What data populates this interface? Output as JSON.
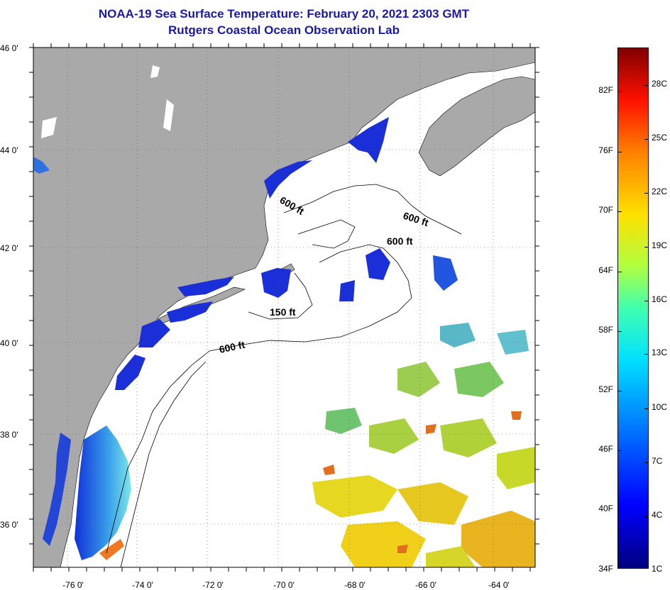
{
  "title": {
    "line1": "NOAA-19 Sea Surface Temperature:  February 20, 2021 2303 GMT",
    "line2": "Rutgers Coastal Ocean Observation Lab"
  },
  "axes": {
    "lat_labels": [
      "46 0'",
      "44 0'",
      "42 0'",
      "40 0'",
      "38 0'",
      "36 0'"
    ],
    "lon_labels": [
      "-76 0'",
      "-74 0'",
      "-72 0'",
      "-70 0'",
      "-68 0'",
      "-66 0'",
      "-64 0'"
    ]
  },
  "contours": {
    "labels": [
      "600 ft",
      "600 ft",
      "600 ft",
      "150 ft",
      "600 ft"
    ]
  },
  "colorbar": {
    "fahrenheit": [
      "82F",
      "76F",
      "70F",
      "64F",
      "58F",
      "52F",
      "46F",
      "40F",
      "34F"
    ],
    "celsius": [
      "28C",
      "25C",
      "22C",
      "19C",
      "16C",
      "13C",
      "10C",
      "7C",
      "4C",
      "1C"
    ]
  },
  "colors": {
    "title": "#1a1aa6",
    "land": "#a9a9a9",
    "ocean_nodata": "#ffffff"
  }
}
